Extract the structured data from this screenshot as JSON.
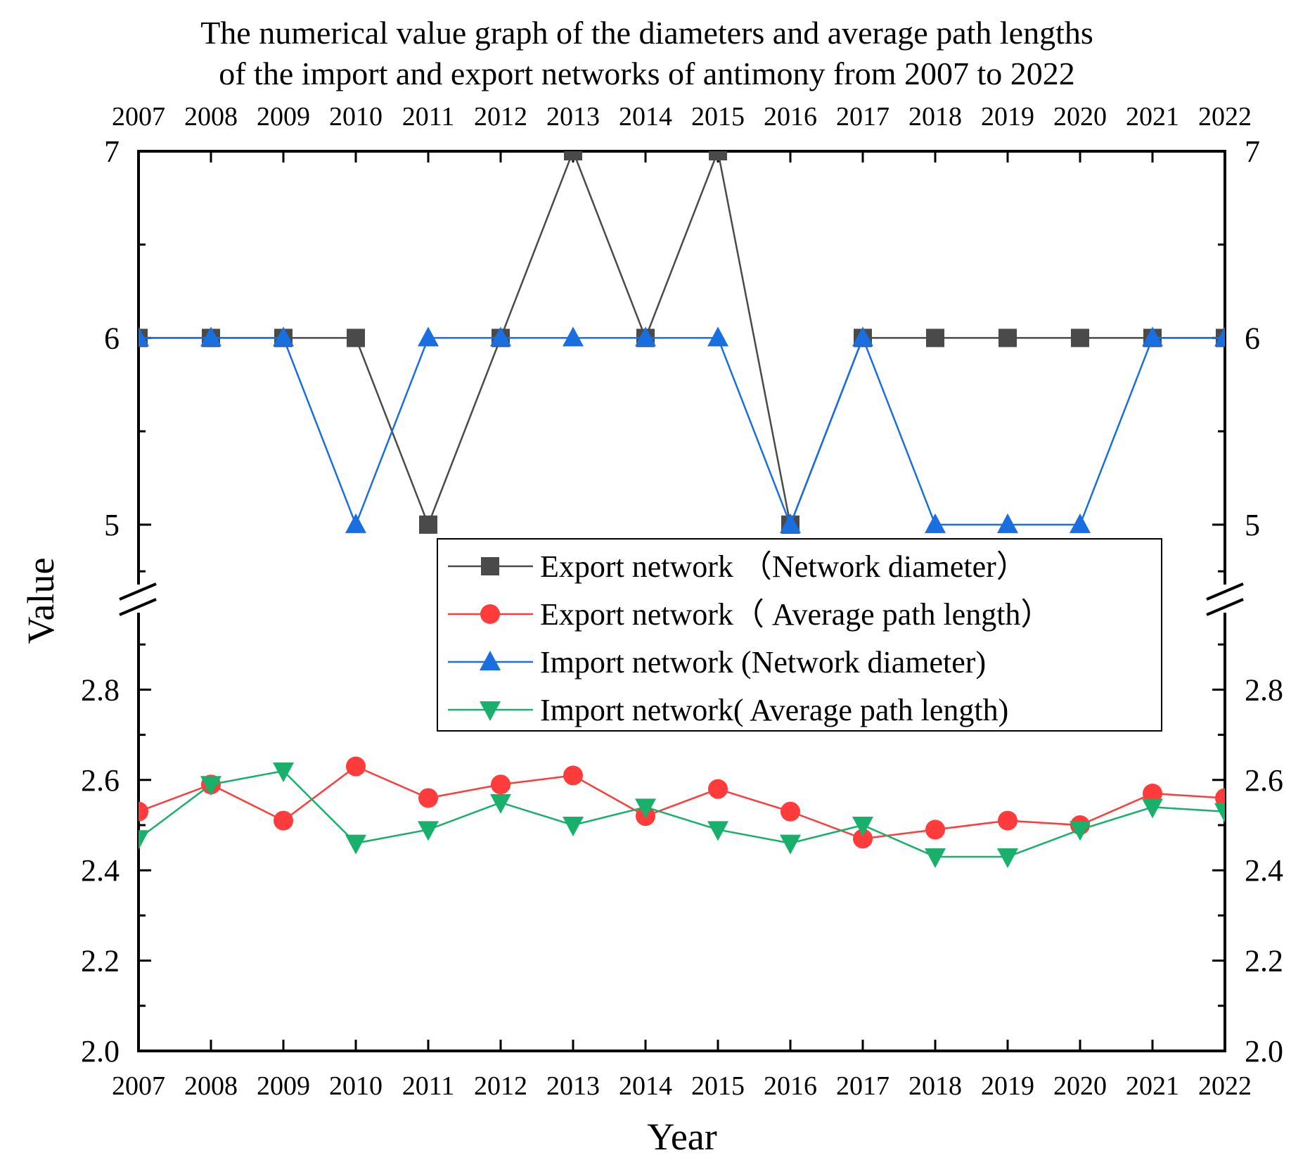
{
  "chart_data": {
    "type": "line",
    "title": [
      "The numerical value graph of the diameters and average path lengths",
      "of the import and export networks of antimony from 2007 to 2022"
    ],
    "xlabel": "Year",
    "ylabel": "Value",
    "x": [
      "2007",
      "2008",
      "2009",
      "2010",
      "2011",
      "2012",
      "2013",
      "2014",
      "2015",
      "2016",
      "2017",
      "2018",
      "2019",
      "2020",
      "2021",
      "2022"
    ],
    "y_axis_break": {
      "lower_range": [
        2.0,
        3.0
      ],
      "upper_range": [
        4.6,
        7.0
      ]
    },
    "upper_ticks": [
      "5",
      "6",
      "7"
    ],
    "lower_ticks": [
      "2.0",
      "2.2",
      "2.4",
      "2.6",
      "2.8"
    ],
    "series": [
      {
        "name": "Export network （Network diameter）",
        "color": "#4a4a4a",
        "marker": "square",
        "values": [
          6,
          6,
          6,
          6,
          5,
          6,
          7,
          6,
          7,
          5,
          6,
          6,
          6,
          6,
          6,
          6
        ]
      },
      {
        "name": "Export network（ Average path length）",
        "color": "#ff3b3b",
        "marker": "circle",
        "values": [
          2.53,
          2.59,
          2.51,
          2.63,
          2.56,
          2.59,
          2.61,
          2.52,
          2.58,
          2.53,
          2.47,
          2.49,
          2.51,
          2.5,
          2.57,
          2.56
        ]
      },
      {
        "name": "Import network (Network diameter)",
        "color": "#1a6fe0",
        "marker": "triangle-up",
        "values": [
          6,
          6,
          6,
          5,
          6,
          6,
          6,
          6,
          6,
          5,
          6,
          5,
          5,
          5,
          6,
          6
        ]
      },
      {
        "name": "Import network( Average path length)",
        "color": "#18b06a",
        "marker": "triangle-down",
        "values": [
          2.47,
          2.59,
          2.62,
          2.46,
          2.49,
          2.55,
          2.5,
          2.54,
          2.49,
          2.46,
          2.5,
          2.43,
          2.43,
          2.49,
          2.54,
          2.53
        ]
      }
    ],
    "legend_position": "upper-right",
    "grid": false
  }
}
